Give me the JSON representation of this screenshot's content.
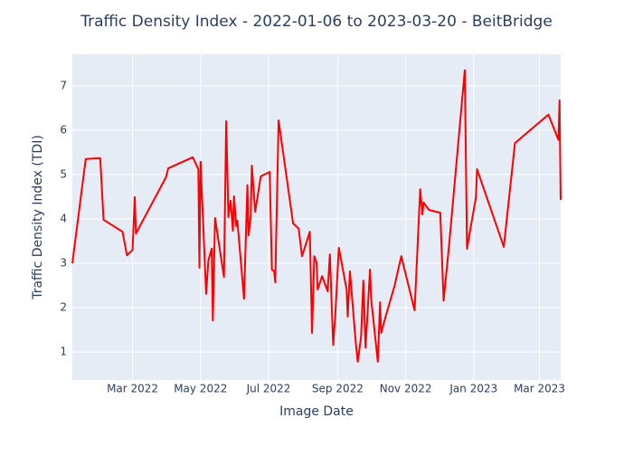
{
  "chart_data": {
    "type": "line",
    "title": "Traffic Density Index - 2022-01-06 to 2023-03-20 - BeitBridge",
    "x_label": "Image Date",
    "y_label": "Traffic Density Index (TDI)",
    "x": [
      "2022-01-06",
      "2022-01-18",
      "2022-01-31",
      "2022-02-03",
      "2022-02-20",
      "2022-02-24",
      "2022-03-01",
      "2022-03-03",
      "2022-03-04",
      "2022-03-31",
      "2022-04-02",
      "2022-04-24",
      "2022-04-29",
      "2022-04-30",
      "2022-05-01",
      "2022-05-06",
      "2022-05-08",
      "2022-05-11",
      "2022-05-12",
      "2022-05-14",
      "2022-05-22",
      "2022-05-24",
      "2022-05-26",
      "2022-05-28",
      "2022-05-30",
      "2022-05-31",
      "2022-06-02",
      "2022-06-03",
      "2022-06-09",
      "2022-06-12",
      "2022-06-13",
      "2022-06-15",
      "2022-06-16",
      "2022-06-19",
      "2022-06-24",
      "2022-07-02",
      "2022-07-04",
      "2022-07-06",
      "2022-07-07",
      "2022-07-10",
      "2022-07-23",
      "2022-07-28",
      "2022-07-31",
      "2022-08-07",
      "2022-08-09",
      "2022-08-11",
      "2022-08-13",
      "2022-08-14",
      "2022-08-18",
      "2022-08-23",
      "2022-08-25",
      "2022-08-27",
      "2022-08-28",
      "2022-08-30",
      "2022-09-02",
      "2022-09-09",
      "2022-09-10",
      "2022-09-12",
      "2022-09-17",
      "2022-09-19",
      "2022-09-22",
      "2022-09-24",
      "2022-09-26",
      "2022-09-30",
      "2022-10-01",
      "2022-10-07",
      "2022-10-09",
      "2022-10-10",
      "2022-10-14",
      "2022-10-22",
      "2022-10-28",
      "2022-11-09",
      "2022-11-14",
      "2022-11-16",
      "2022-11-17",
      "2022-11-22",
      "2022-12-02",
      "2022-12-05",
      "2022-12-10",
      "2022-12-24",
      "2022-12-26",
      "2023-01-03",
      "2023-01-04",
      "2023-01-28",
      "2023-02-07",
      "2023-03-09",
      "2023-03-18",
      "2023-03-19",
      "2023-03-20"
    ],
    "series": [
      {
        "name": "TDI",
        "color": "#ff0000",
        "values": [
          3.0,
          5.35,
          5.37,
          3.98,
          3.71,
          3.18,
          3.3,
          4.49,
          3.67,
          4.94,
          5.14,
          5.39,
          5.12,
          2.9,
          5.29,
          2.31,
          3.06,
          3.33,
          1.71,
          4.02,
          2.69,
          6.2,
          4.04,
          4.41,
          3.73,
          4.51,
          3.84,
          3.96,
          2.2,
          4.76,
          3.63,
          4.04,
          5.2,
          4.16,
          4.96,
          5.06,
          2.86,
          2.82,
          2.57,
          6.22,
          3.9,
          3.78,
          3.16,
          3.71,
          1.43,
          3.16,
          3.02,
          2.41,
          2.71,
          2.37,
          3.2,
          1.8,
          1.16,
          1.9,
          3.35,
          2.41,
          1.8,
          2.82,
          1.27,
          0.78,
          1.35,
          2.61,
          1.1,
          2.86,
          2.2,
          0.78,
          2.12,
          1.43,
          1.8,
          2.49,
          3.16,
          1.94,
          4.67,
          4.1,
          4.37,
          4.2,
          4.14,
          2.16,
          3.43,
          7.35,
          3.33,
          4.49,
          5.12,
          3.37,
          5.71,
          6.35,
          5.78,
          6.67,
          4.43
        ]
      }
    ],
    "xlim": [
      "2022-01-06",
      "2023-03-20"
    ],
    "xticks": [
      {
        "value": "2022-03-01",
        "label": "Mar 2022"
      },
      {
        "value": "2022-05-01",
        "label": "May 2022"
      },
      {
        "value": "2022-07-01",
        "label": "Jul 2022"
      },
      {
        "value": "2022-09-01",
        "label": "Sep 2022"
      },
      {
        "value": "2022-11-01",
        "label": "Nov 2022"
      },
      {
        "value": "2023-01-01",
        "label": "Jan 2023"
      },
      {
        "value": "2023-03-01",
        "label": "Mar 2023"
      }
    ],
    "ylim": [
      0.37,
      7.71
    ],
    "yticks": [
      1,
      2,
      3,
      4,
      5,
      6,
      7
    ],
    "grid": true
  }
}
